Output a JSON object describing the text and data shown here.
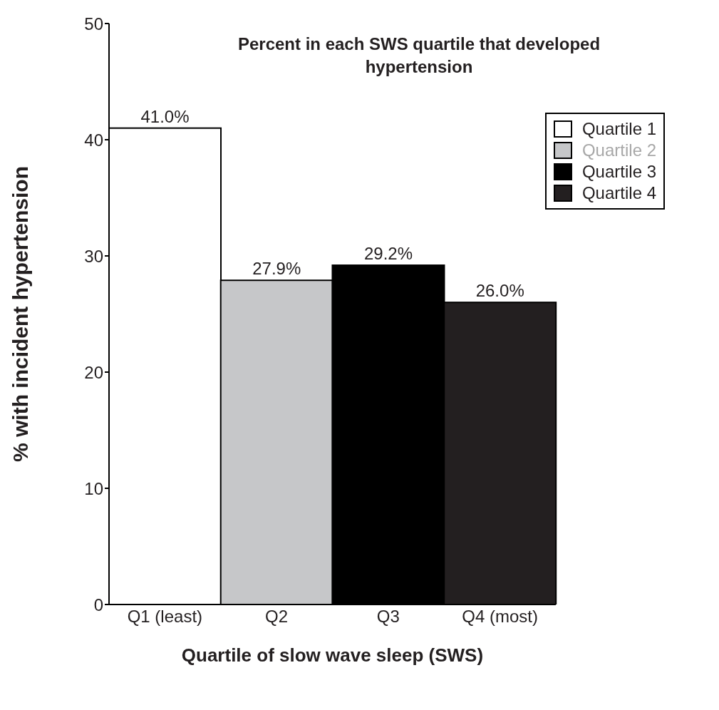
{
  "chart_data": {
    "type": "bar",
    "title": "Percent in each SWS quartile that developed hypertension",
    "xlabel": "Quartile of slow wave sleep (SWS)",
    "ylabel": "% with incident hypertension",
    "categories": [
      "Q1 (least)",
      "Q2",
      "Q3",
      "Q4 (most)"
    ],
    "stacked": true,
    "series": [
      {
        "name": "Quartile 1",
        "color": "#ffffff",
        "values": [
          41.0,
          null,
          null,
          null
        ],
        "value_labels": [
          "41.0%",
          null,
          null,
          null
        ]
      },
      {
        "name": "Quartile 2",
        "color": "#c6c7c9",
        "values": [
          null,
          27.9,
          null,
          null
        ],
        "value_labels": [
          null,
          "27.9%",
          null,
          null
        ]
      },
      {
        "name": "Quartile 3",
        "color": "#000000",
        "values": [
          null,
          null,
          29.2,
          null
        ],
        "value_labels": [
          null,
          null,
          "29.2%",
          null
        ]
      },
      {
        "name": "Quartile 4",
        "color": "#231f20",
        "values": [
          null,
          null,
          null,
          26.0
        ],
        "value_labels": [
          null,
          null,
          null,
          "26.0%"
        ]
      }
    ],
    "ylim": [
      0,
      50
    ],
    "yticks": [
      0,
      10,
      20,
      30,
      40,
      50
    ],
    "legend": "top right"
  }
}
